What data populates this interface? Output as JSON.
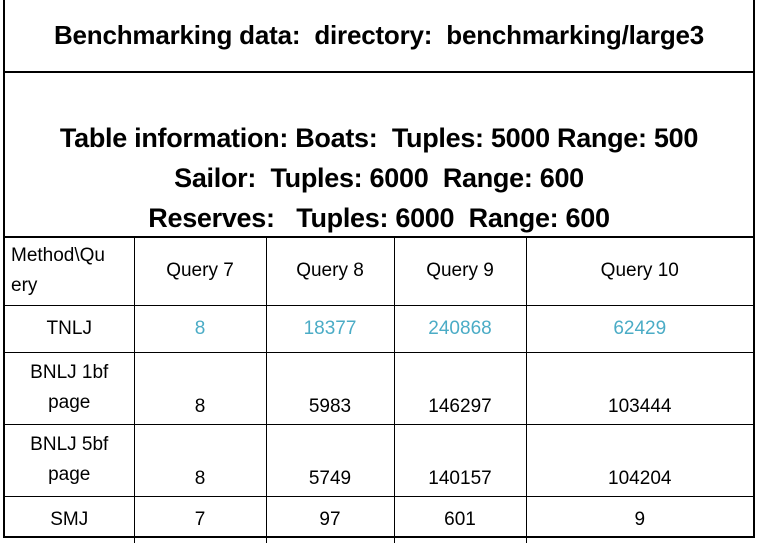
{
  "title": "Benchmarking data:  directory:  benchmarking/large3",
  "info_lines": [
    "Table information: Boats:  Tuples: 5000 Range: 500",
    "Sailor:  Tuples: 6000  Range: 600",
    "Reserves:   Tuples: 6000  Range: 600"
  ],
  "table": {
    "header": {
      "method_line1": "Method\\Qu",
      "method_line2": "ery",
      "columns": [
        "Query 7",
        "Query 8",
        "Query 9",
        "Query 10"
      ]
    },
    "rows": [
      {
        "label_line1": "TNLJ",
        "label_line2": "",
        "values": [
          "8",
          "18377",
          "240868",
          "62429"
        ],
        "value_color": "#4BACC6"
      },
      {
        "label_line1": "BNLJ 1bf",
        "label_line2": "page",
        "values": [
          "8",
          "5983",
          "146297",
          "103444"
        ],
        "value_color": "#000000"
      },
      {
        "label_line1": "BNLJ 5bf",
        "label_line2": "page",
        "values": [
          "8",
          "5749",
          "140157",
          "104204"
        ],
        "value_color": "#000000"
      },
      {
        "label_line1": "SMJ",
        "label_line2": "",
        "values": [
          "7",
          "97",
          "601",
          "9"
        ],
        "value_color": "#000000"
      }
    ]
  }
}
